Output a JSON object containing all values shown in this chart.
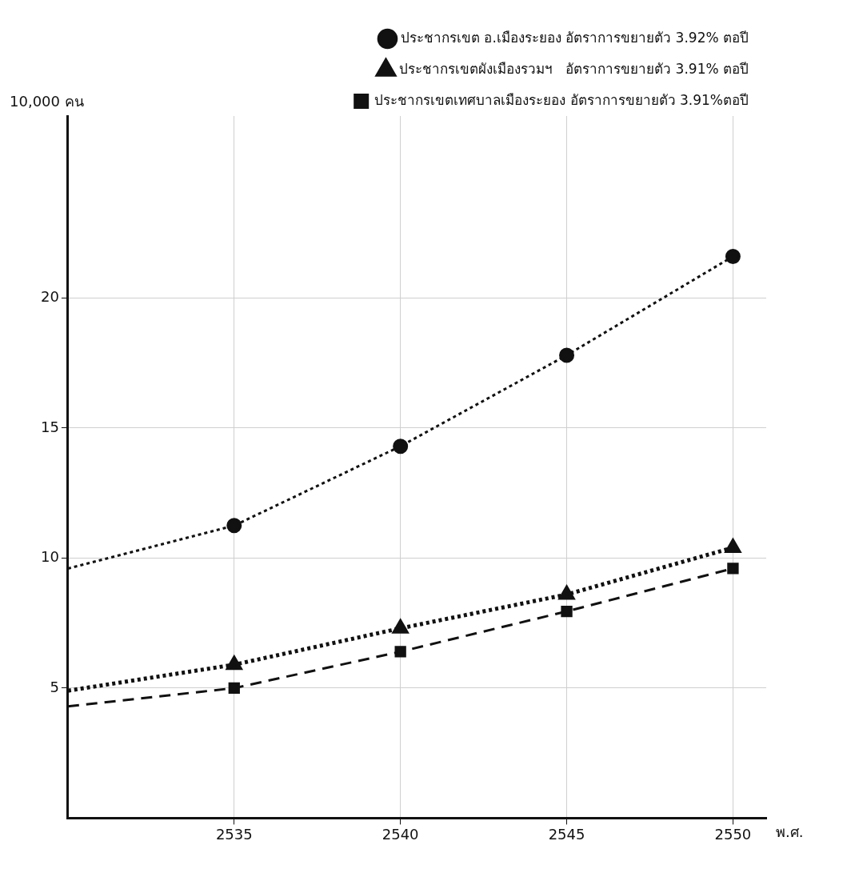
{
  "chart_data": {
    "type": "line",
    "xlabel": "พ.ศ.",
    "ylabel": "10,000 คน",
    "x": [
      2530,
      2535,
      2540,
      2545,
      2550
    ],
    "xlim": [
      2530,
      2551
    ],
    "xticks": [
      2535,
      2540,
      2545,
      2550
    ],
    "ylim": [
      0,
      27
    ],
    "yticks": [
      5,
      10,
      15,
      20
    ],
    "grid": true,
    "legend": "top right",
    "series": [
      {
        "name": "ประชากรเขต อ.เมืองระยอง อัตราการขยายตัว 3.92% ตอปี",
        "color": "#111111",
        "marker": "circle",
        "line_style": "dotted",
        "values": [
          9.6,
          11.25,
          14.3,
          17.8,
          21.6
        ]
      },
      {
        "name": "ประชากรเขตผังเมืองรวมฯ   อัตราการขยายตัว 3.91% ตอปี",
        "color": "#111111",
        "marker": "triangle",
        "line_style": "dotted",
        "values": [
          4.9,
          5.9,
          7.3,
          8.6,
          10.4
        ]
      },
      {
        "name": "ประชากรเขตเทศบาลเมืองระยอง อัตราการขยายตัว 3.91%ตอปี",
        "color": "#111111",
        "marker": "square",
        "line_style": "dashed",
        "values": [
          4.3,
          5.0,
          6.4,
          7.95,
          9.6
        ]
      }
    ]
  }
}
